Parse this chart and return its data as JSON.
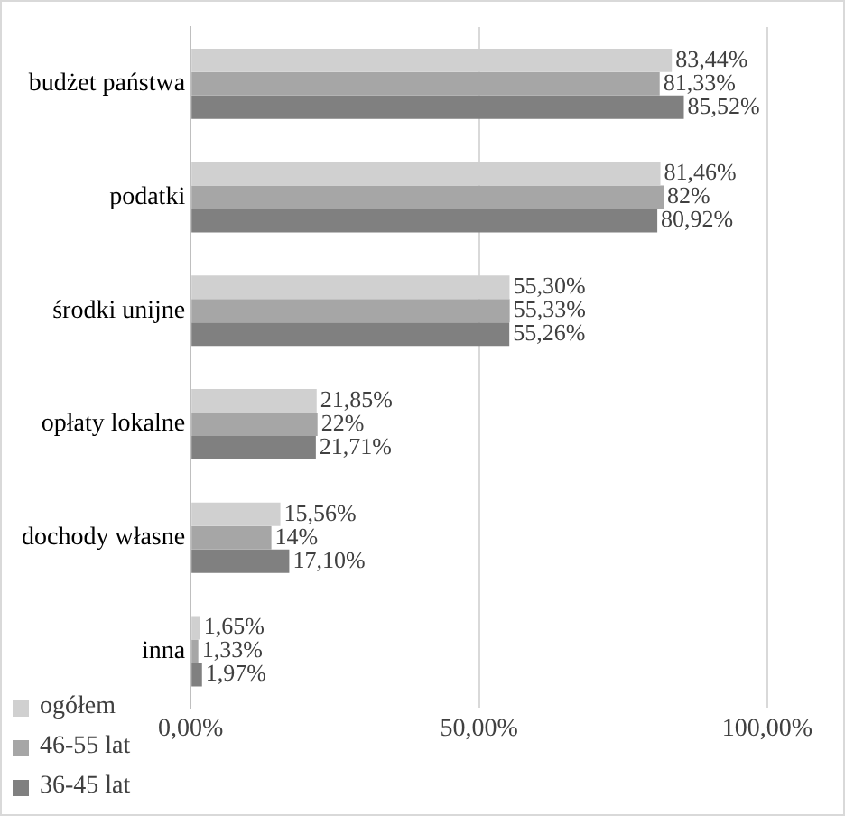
{
  "chart_data": {
    "type": "bar",
    "orientation": "horizontal",
    "categories": [
      "budżet państwa",
      "podatki",
      "środki unijne",
      "opłaty lokalne",
      "dochody własne",
      "inna"
    ],
    "series": [
      {
        "name": "ogółem",
        "color": "#d0d0d0",
        "values": [
          83.44,
          81.46,
          55.3,
          21.85,
          15.56,
          1.65
        ],
        "value_labels": [
          "83,44%",
          "81,46%",
          "55,30%",
          "21,85%",
          "15,56%",
          "1,65%"
        ]
      },
      {
        "name": "46-55 lat",
        "color": "#a6a6a6",
        "values": [
          81.33,
          82,
          55.33,
          22,
          14,
          1.33
        ],
        "value_labels": [
          "81,33%",
          "82%",
          "55,33%",
          "22%",
          "14%",
          "1,33%"
        ]
      },
      {
        "name": "36-45 lat",
        "color": "#808080",
        "values": [
          85.52,
          80.92,
          55.26,
          21.71,
          17.1,
          1.97
        ],
        "value_labels": [
          "85,52%",
          "80,92%",
          "55,26%",
          "21,71%",
          "17,10%",
          "1,97%"
        ]
      }
    ],
    "xlim": [
      0,
      100
    ],
    "xticks": [
      {
        "value": 0,
        "label": "0,00%"
      },
      {
        "value": 50,
        "label": "50,00%"
      },
      {
        "value": 100,
        "label": "100,00%"
      }
    ],
    "grid": "x",
    "legend": "bottom left"
  }
}
